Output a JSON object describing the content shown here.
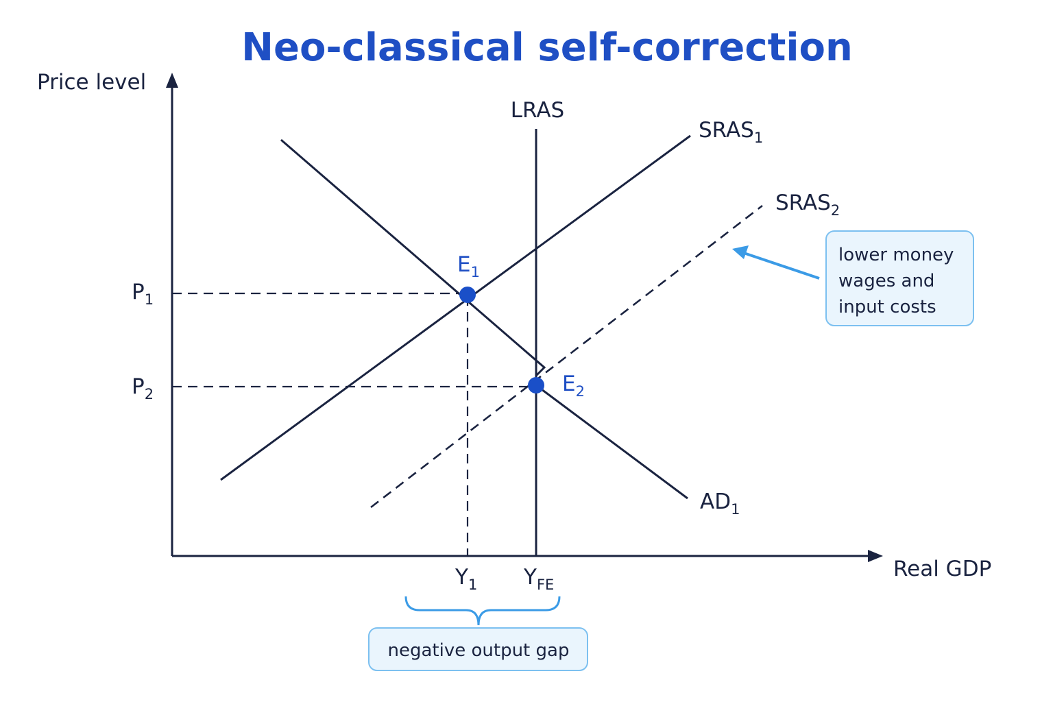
{
  "title": "Neo-classical self-correction",
  "axes": {
    "y_label": "Price level",
    "x_label": "Real GDP"
  },
  "curves": [
    {
      "label": "LRAS"
    },
    {
      "label": "SRAS",
      "sub": "1"
    },
    {
      "label": "SRAS",
      "sub": "2"
    },
    {
      "label": "AD",
      "sub": "1"
    }
  ],
  "points": [
    {
      "label": "E",
      "sub": "1"
    },
    {
      "label": "E",
      "sub": "2"
    }
  ],
  "prices": [
    {
      "label": "P",
      "sub": "1"
    },
    {
      "label": "P",
      "sub": "2"
    }
  ],
  "outputs": [
    {
      "label": "Y",
      "sub": "1"
    },
    {
      "label": "Y",
      "sub": "FE"
    }
  ],
  "annotations": {
    "shift_note": [
      "lower money",
      "wages and",
      "input costs"
    ],
    "gap_note": "negative output gap"
  }
}
